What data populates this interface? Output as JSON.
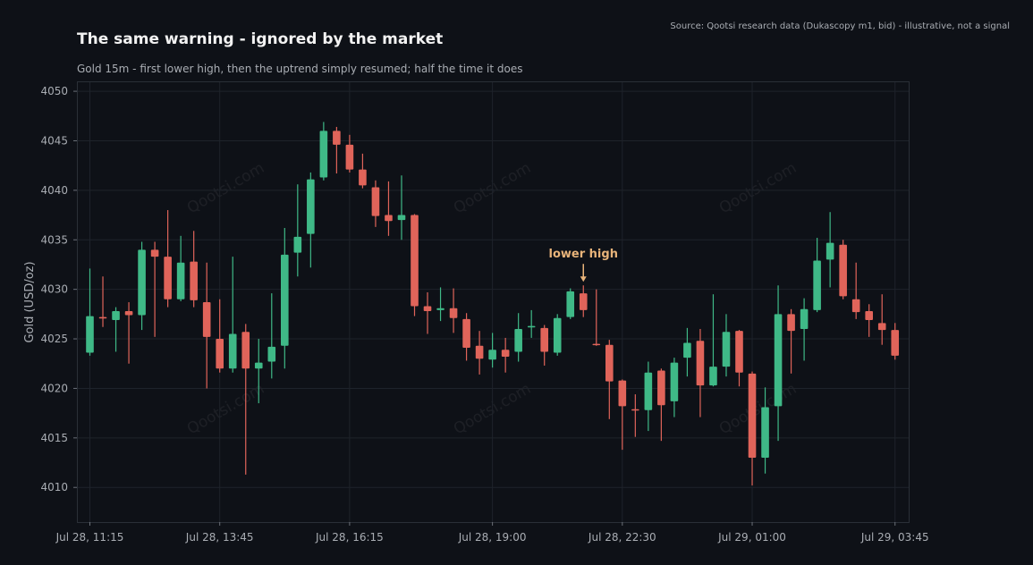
{
  "header": {
    "title": "The same warning - ignored by the market",
    "subtitle": "Gold 15m - first lower high, then the uptrend simply resumed; half the time it does",
    "source": "Source: Qootsi research data (Dukascopy m1, bid) - illustrative, not a signal"
  },
  "watermark": "Qootsi.com",
  "colors": {
    "up": "#3fb987",
    "down": "#e0645a",
    "annotation": "#e8b47a",
    "background": "#0e1117",
    "grid": "#1e232b"
  },
  "chart_data": {
    "type": "candlestick",
    "ylabel": "Gold (USD/oz)",
    "ylim": [
      4006.5,
      4051
    ],
    "yticks": [
      4010,
      4015,
      4020,
      4025,
      4030,
      4035,
      4040,
      4045,
      4050
    ],
    "xtick_labels": [
      "Jul 28, 11:15",
      "Jul 28, 13:45",
      "Jul 28, 16:15",
      "Jul 28, 19:00",
      "Jul 28, 22:30",
      "Jul 29, 01:00",
      "Jul 29, 03:45"
    ],
    "xtick_index": [
      0,
      10,
      20,
      31,
      41,
      51,
      62
    ],
    "grid": true,
    "annotation": {
      "text": "lower high",
      "candle_index": 38
    },
    "candles": [
      [
        4023.6,
        4032.1,
        4023.3,
        4027.3
      ],
      [
        4027.2,
        4031.3,
        4026.2,
        4027.1
      ],
      [
        4026.9,
        4028.2,
        4023.7,
        4027.8
      ],
      [
        4027.8,
        4028.7,
        4022.5,
        4027.4
      ],
      [
        4027.4,
        4034.8,
        4025.9,
        4034.0
      ],
      [
        4034.0,
        4034.8,
        4025.2,
        4033.3
      ],
      [
        4033.3,
        4038.0,
        4028.2,
        4029.0
      ],
      [
        4029.0,
        4035.4,
        4028.8,
        4032.7
      ],
      [
        4032.8,
        4035.9,
        4028.2,
        4028.9
      ],
      [
        4028.7,
        4032.7,
        4020.0,
        4025.2
      ],
      [
        4025.0,
        4029.0,
        4021.6,
        4022.0
      ],
      [
        4022.0,
        4033.3,
        4021.6,
        4025.5
      ],
      [
        4025.7,
        4026.5,
        4011.3,
        4022.0
      ],
      [
        4022.0,
        4025.0,
        4018.5,
        4022.6
      ],
      [
        4022.7,
        4029.6,
        4021.0,
        4024.2
      ],
      [
        4024.3,
        4036.2,
        4022.0,
        4033.5
      ],
      [
        4033.7,
        4040.6,
        4031.3,
        4035.3
      ],
      [
        4035.6,
        4041.8,
        4032.2,
        4041.1
      ],
      [
        4041.3,
        4046.9,
        4041.0,
        4046.0
      ],
      [
        4046.0,
        4046.4,
        4041.7,
        4044.6
      ],
      [
        4044.6,
        4045.6,
        4041.8,
        4042.1
      ],
      [
        4042.1,
        4043.7,
        4040.2,
        4040.5
      ],
      [
        4040.3,
        4041.0,
        4036.3,
        4037.4
      ],
      [
        4037.5,
        4040.9,
        4035.4,
        4036.9
      ],
      [
        4037.0,
        4041.5,
        4035.0,
        4037.5
      ],
      [
        4037.5,
        4037.6,
        4027.3,
        4028.3
      ],
      [
        4028.3,
        4029.7,
        4025.5,
        4027.8
      ],
      [
        4027.9,
        4030.2,
        4026.8,
        4028.1
      ],
      [
        4028.1,
        4030.1,
        4025.6,
        4027.1
      ],
      [
        4027.0,
        4027.6,
        4022.8,
        4024.1
      ],
      [
        4024.3,
        4025.8,
        4021.4,
        4023.0
      ],
      [
        4022.9,
        4025.6,
        4022.1,
        4023.9
      ],
      [
        4023.9,
        4025.1,
        4021.6,
        4023.2
      ],
      [
        4023.7,
        4027.6,
        4022.7,
        4026.0
      ],
      [
        4026.2,
        4027.9,
        4025.1,
        4026.3
      ],
      [
        4026.1,
        4026.4,
        4022.3,
        4023.7
      ],
      [
        4023.6,
        4027.5,
        4023.3,
        4027.1
      ],
      [
        4027.2,
        4030.1,
        4027.0,
        4029.8
      ],
      [
        4029.6,
        4030.4,
        4027.2,
        4027.9
      ],
      [
        4024.5,
        4030.0,
        4024.3,
        4024.4
      ],
      [
        4024.4,
        4024.9,
        4016.9,
        4020.7
      ],
      [
        4020.8,
        4020.9,
        4013.8,
        4018.2
      ],
      [
        4017.9,
        4019.4,
        4015.1,
        4017.8
      ],
      [
        4017.8,
        4022.7,
        4015.7,
        4021.6
      ],
      [
        4021.8,
        4022.0,
        4014.7,
        4018.3
      ],
      [
        4018.7,
        4023.1,
        4017.1,
        4022.6
      ],
      [
        4023.1,
        4026.1,
        4021.2,
        4024.6
      ],
      [
        4024.8,
        4026.0,
        4017.1,
        4020.3
      ],
      [
        4020.3,
        4029.5,
        4020.2,
        4022.2
      ],
      [
        4022.2,
        4027.5,
        4021.2,
        4025.7
      ],
      [
        4025.8,
        4025.9,
        4020.2,
        4021.6
      ],
      [
        4021.5,
        4021.7,
        4010.2,
        4013.0
      ],
      [
        4013.0,
        4020.1,
        4011.4,
        4018.1
      ],
      [
        4018.2,
        4030.4,
        4014.7,
        4027.5
      ],
      [
        4027.5,
        4028.0,
        4021.5,
        4025.8
      ],
      [
        4026.0,
        4029.1,
        4022.8,
        4028.0
      ],
      [
        4027.9,
        4035.2,
        4027.7,
        4032.9
      ],
      [
        4033.0,
        4037.8,
        4030.2,
        4034.7
      ],
      [
        4034.5,
        4035.0,
        4029.0,
        4029.3
      ],
      [
        4029.0,
        4032.7,
        4027.0,
        4027.7
      ],
      [
        4027.8,
        4028.5,
        4025.2,
        4026.9
      ],
      [
        4026.6,
        4029.5,
        4024.4,
        4025.9
      ],
      [
        4025.9,
        4026.6,
        4022.9,
        4023.3
      ]
    ]
  }
}
